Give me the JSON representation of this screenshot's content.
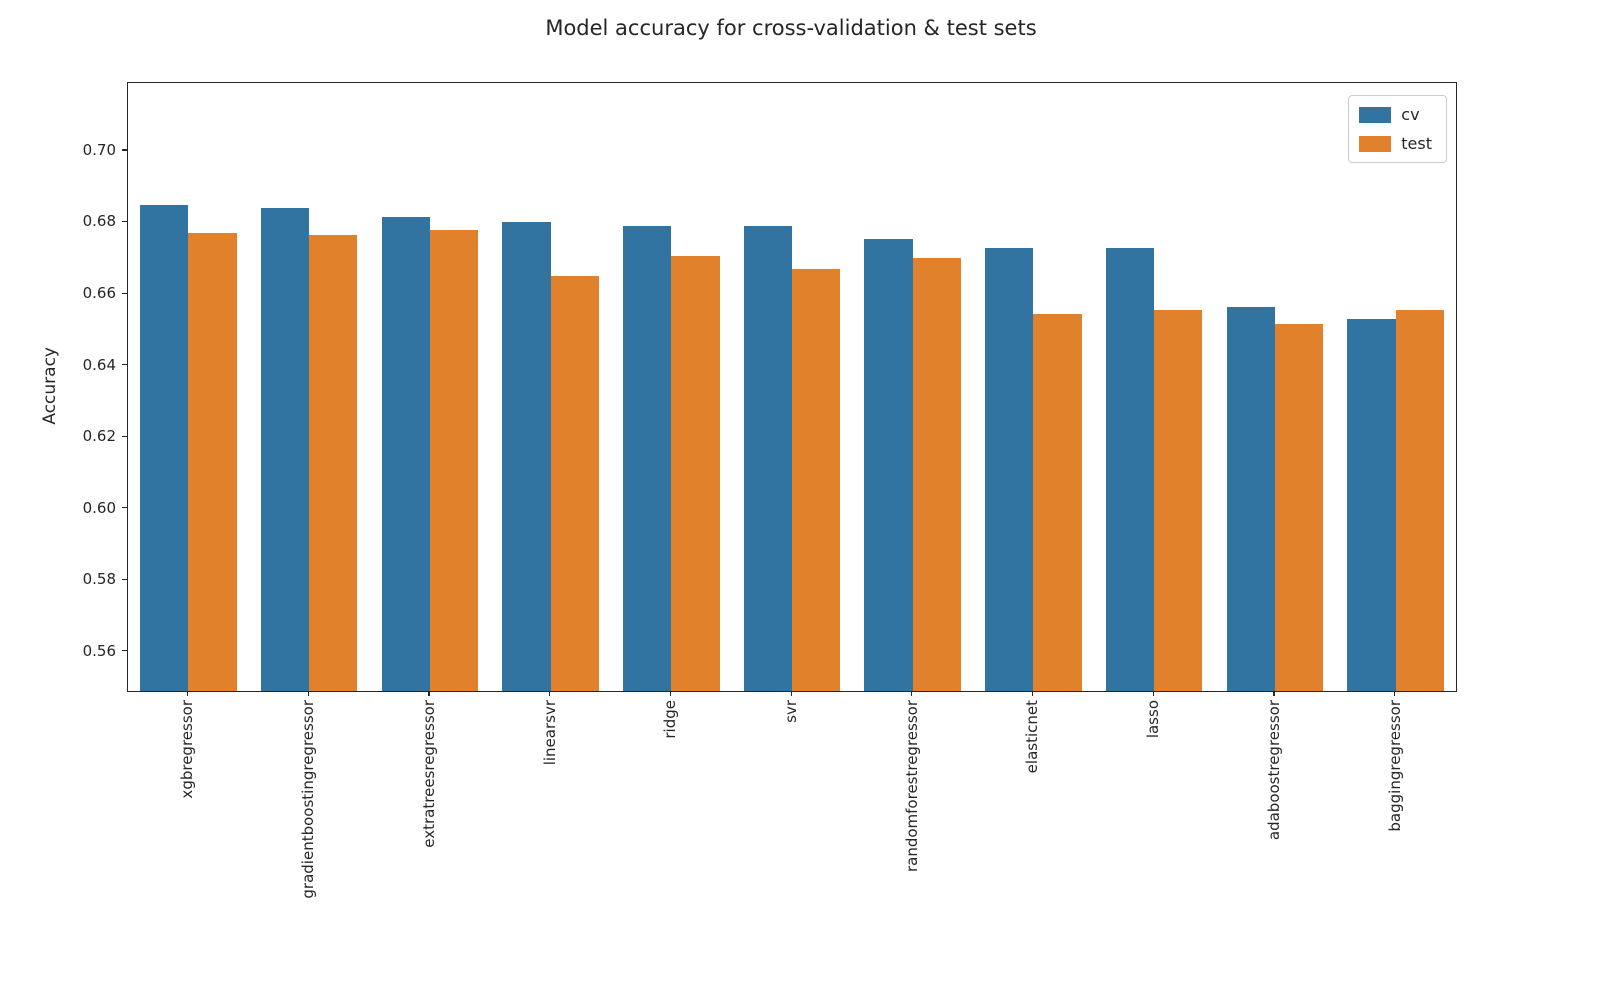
{
  "figure": {
    "title": "Model accuracy for cross-validation & test sets"
  },
  "chart_data": {
    "type": "bar",
    "title": "Model accuracy for cross-validation & test sets",
    "xlabel": "",
    "ylabel": "Accuracy",
    "categories": [
      "xgbregressor",
      "gradientboostingregressor",
      "extratreesregressor",
      "linearsvr",
      "ridge",
      "svr",
      "randomforestregressor",
      "elasticnet",
      "lasso",
      "adaboostregressor",
      "baggingregressor"
    ],
    "series": [
      {
        "name": "cv",
        "color": "#3274a1",
        "values": [
          0.685,
          0.684,
          0.6815,
          0.68,
          0.679,
          0.679,
          0.6755,
          0.673,
          0.673,
          0.6565,
          0.653
        ]
      },
      {
        "name": "test",
        "color": "#e1812c",
        "values": [
          0.677,
          0.6765,
          0.678,
          0.665,
          0.6705,
          0.667,
          0.67,
          0.6545,
          0.6555,
          0.6515,
          0.6555
        ]
      }
    ],
    "ylim": [
      0.549,
      0.719
    ],
    "yticks": [
      0.56,
      0.58,
      0.6,
      0.62,
      0.64,
      0.66,
      0.68,
      0.7
    ],
    "legend": {
      "position": "upper right",
      "entries": [
        "cv",
        "test"
      ]
    },
    "grid": false
  }
}
